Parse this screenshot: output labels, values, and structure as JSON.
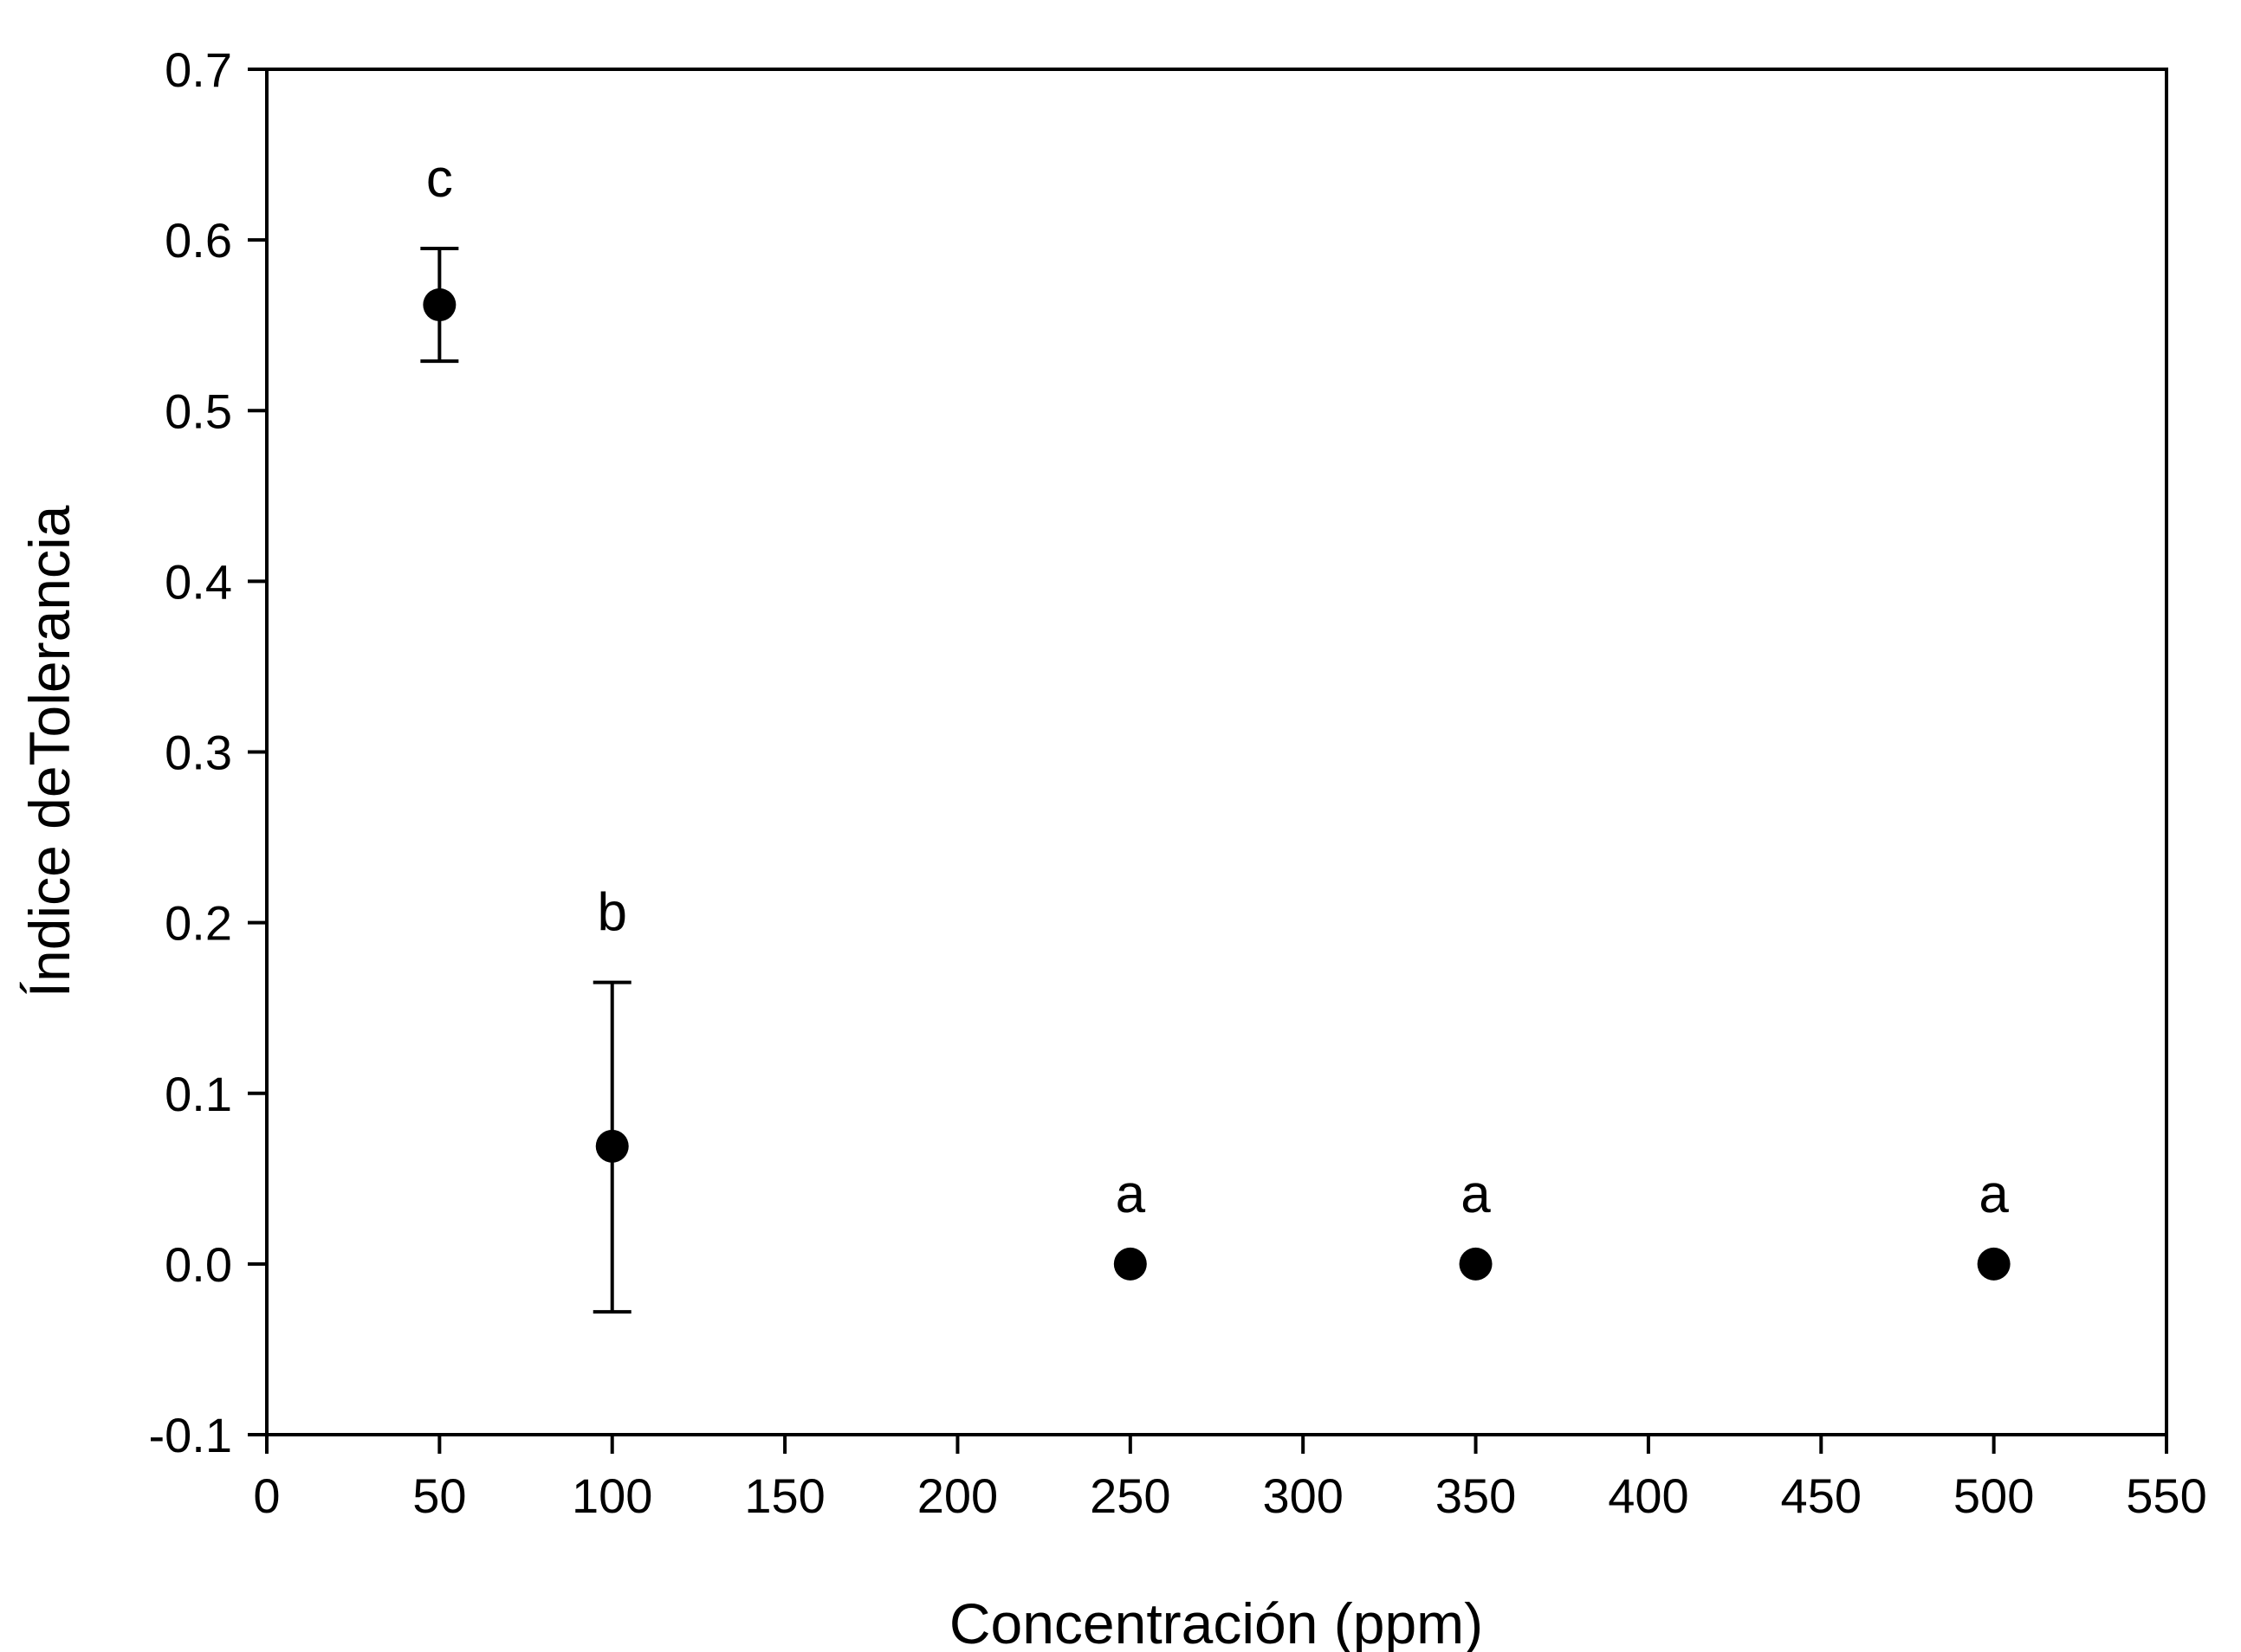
{
  "chart_data": {
    "type": "scatter",
    "title": "",
    "xlabel": "Concentración (ppm)",
    "ylabel": "Índice deTolerancia",
    "xlim": [
      0,
      550
    ],
    "ylim": [
      -0.1,
      0.7
    ],
    "xticks": [
      "0",
      "50",
      "100",
      "150",
      "200",
      "250",
      "300",
      "350",
      "400",
      "450",
      "500",
      "550"
    ],
    "yticks": [
      "-0.1",
      "0.0",
      "0.1",
      "0.2",
      "0.3",
      "0.4",
      "0.5",
      "0.6",
      "0.7"
    ],
    "grid": false,
    "legend": false,
    "marker_color": "#000000",
    "points": [
      {
        "x": 50,
        "y": 0.562,
        "err_low": 0.529,
        "err_high": 0.595,
        "label": "c"
      },
      {
        "x": 100,
        "y": 0.069,
        "err_low": -0.028,
        "err_high": 0.165,
        "label": "b"
      },
      {
        "x": 250,
        "y": 0.0,
        "err_low": null,
        "err_high": null,
        "label": "a"
      },
      {
        "x": 350,
        "y": 0.0,
        "err_low": null,
        "err_high": null,
        "label": "a"
      },
      {
        "x": 500,
        "y": 0.0,
        "err_low": null,
        "err_high": null,
        "label": "a"
      }
    ]
  }
}
